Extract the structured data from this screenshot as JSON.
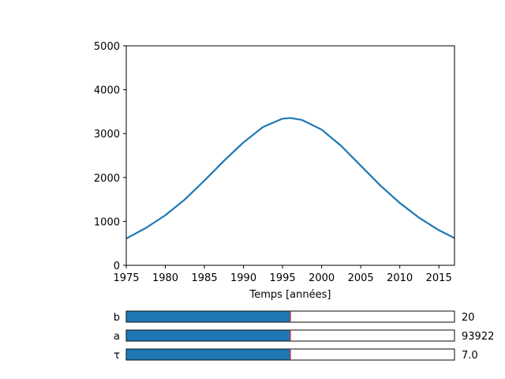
{
  "chart_data": {
    "type": "line",
    "title": "",
    "xlabel": "Temps [années]",
    "ylabel": "",
    "xlim": [
      1975,
      2017
    ],
    "ylim": [
      0,
      5000
    ],
    "grid": false,
    "xticks": [
      "1975",
      "1980",
      "1985",
      "1990",
      "1995",
      "2000",
      "2005",
      "2010",
      "2015"
    ],
    "yticks": [
      "0",
      "1000",
      "2000",
      "3000",
      "4000",
      "5000"
    ],
    "series": [
      {
        "color": "#1f77b4",
        "x": [
          1975,
          1977.5,
          1980,
          1982.5,
          1985,
          1987.5,
          1990,
          1992.5,
          1995,
          1996,
          1997.5,
          2000,
          2002.5,
          2005,
          2007.5,
          2010,
          2012.5,
          2015,
          2017
        ],
        "y": [
          610,
          850,
          1140,
          1500,
          1930,
          2380,
          2800,
          3150,
          3340,
          3355,
          3310,
          3090,
          2720,
          2270,
          1820,
          1420,
          1080,
          800,
          620
        ]
      }
    ]
  },
  "sliders": [
    {
      "label": "b",
      "value": "20",
      "fraction": 0.5
    },
    {
      "label": "a",
      "value": "93922",
      "fraction": 0.5
    },
    {
      "label": "τ",
      "value": "7.0",
      "fraction": 0.5
    }
  ],
  "colors": {
    "line": "#1f77b4",
    "slider_fill": "#1f77b4",
    "slider_init_marker": "#d62728"
  }
}
